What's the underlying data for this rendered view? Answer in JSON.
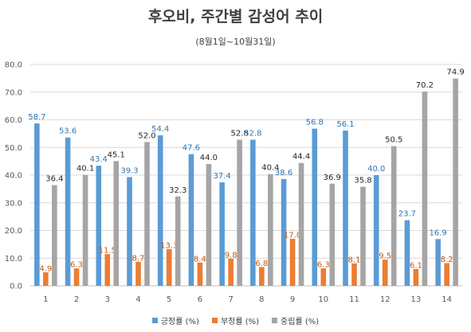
{
  "chart_data": {
    "type": "bar",
    "title": "후오비, 주간별 감성어 추이",
    "subtitle": "(8월1일~10월31일)",
    "categories": [
      "1",
      "2",
      "3",
      "4",
      "5",
      "6",
      "7",
      "8",
      "9",
      "10",
      "11",
      "12",
      "13",
      "14"
    ],
    "ylim": [
      0,
      80
    ],
    "yticks": [
      "0.0",
      "10.0",
      "20.0",
      "30.0",
      "40.0",
      "50.0",
      "60.0",
      "70.0",
      "80.0"
    ],
    "grid": true,
    "legend_position": "bottom",
    "series": [
      {
        "name": "긍정률 (%)",
        "color": "#5B9BD5",
        "label_color": "#2E75B6",
        "values": [
          58.7,
          53.6,
          43.4,
          39.3,
          54.4,
          47.6,
          37.4,
          52.8,
          38.6,
          56.8,
          56.1,
          40.0,
          23.7,
          16.9
        ]
      },
      {
        "name": "부정률 (%)",
        "color": "#ED7D31",
        "label_color": "#C55A11",
        "values": [
          4.9,
          6.3,
          11.5,
          8.7,
          13.3,
          8.4,
          9.8,
          6.8,
          17.0,
          6.3,
          8.1,
          9.5,
          6.1,
          8.2
        ]
      },
      {
        "name": "중립률 (%)",
        "color": "#A5A5A5",
        "label_color": "#262626",
        "values": [
          36.4,
          40.1,
          45.1,
          52.0,
          32.3,
          44.0,
          52.8,
          40.4,
          44.4,
          36.9,
          35.8,
          50.5,
          70.2,
          74.9
        ]
      }
    ]
  }
}
